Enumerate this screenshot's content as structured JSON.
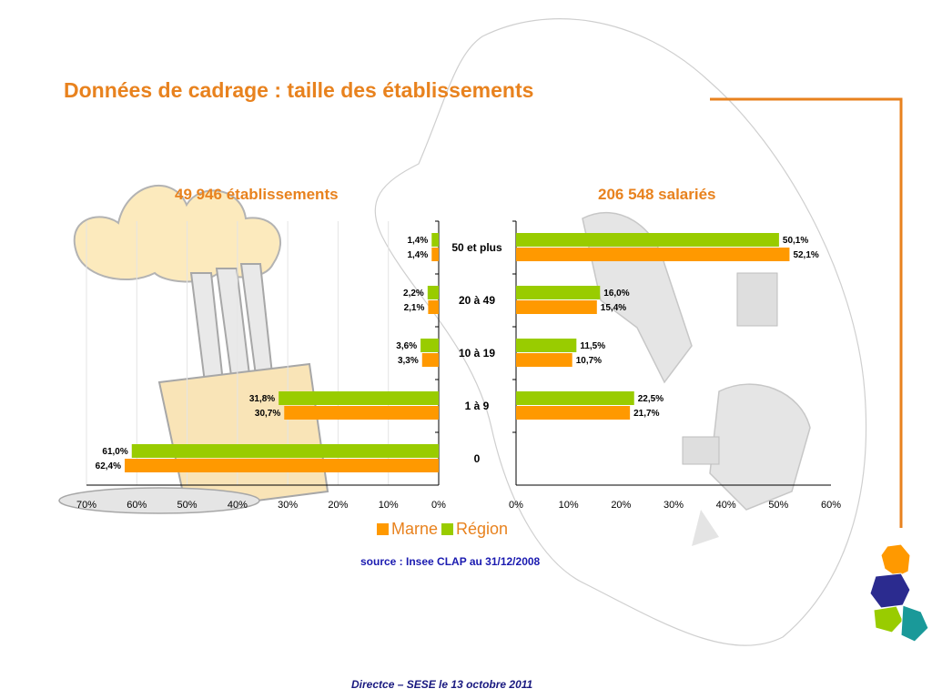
{
  "slide": {
    "title": "Données de cadrage : taille  des établissements",
    "source": "source : Insee CLAP au 31/12/2008",
    "footer": "Directce – SESE le 13 octobre 2011"
  },
  "colors": {
    "marne": "#ff9900",
    "region": "#99cc00",
    "title": "#e8821e",
    "accent_line": "#e8821e",
    "source_text": "#1a1ab0"
  },
  "legend": {
    "marne": "Marne",
    "region": "Région"
  },
  "chart_data": [
    {
      "type": "bar",
      "orientation": "horizontal-mirrored",
      "title": "49 946 établissements",
      "categories": [
        "50 et plus",
        "20 à 49",
        "10 à 19",
        "1 à 9",
        "0"
      ],
      "series": [
        {
          "name": "Région",
          "values": [
            1.4,
            2.2,
            3.6,
            31.8,
            61.0
          ]
        },
        {
          "name": "Marne",
          "values": [
            1.4,
            2.1,
            3.3,
            30.7,
            62.4
          ]
        }
      ],
      "data_labels": {
        "Région": [
          "1,4%",
          "2,2%",
          "3,6%",
          "31,8%",
          "61,0%"
        ],
        "Marne": [
          "1,4%",
          "2,1%",
          "3,3%",
          "30,7%",
          "62,4%"
        ]
      },
      "xlim": [
        0,
        70
      ],
      "xticks": [
        70,
        60,
        50,
        40,
        30,
        20,
        10,
        0
      ],
      "xtick_labels": [
        "70%",
        "60%",
        "50%",
        "40%",
        "30%",
        "20%",
        "10%",
        "0%"
      ],
      "grid": true
    },
    {
      "type": "bar",
      "orientation": "horizontal",
      "title": "206 548 salariés",
      "categories": [
        "50 et plus",
        "20 à 49",
        "10 à 19",
        "1 à 9",
        "0"
      ],
      "series": [
        {
          "name": "Région",
          "values": [
            50.1,
            16.0,
            11.5,
            22.5,
            null
          ]
        },
        {
          "name": "Marne",
          "values": [
            52.1,
            15.4,
            10.7,
            21.7,
            null
          ]
        }
      ],
      "data_labels": {
        "Région": [
          "50,1%",
          "16,0%",
          "11,5%",
          "22,5%",
          ""
        ],
        "Marne": [
          "52,1%",
          "15,4%",
          "10,7%",
          "21,7%",
          ""
        ]
      },
      "xlim": [
        0,
        60
      ],
      "xticks": [
        0,
        10,
        20,
        30,
        40,
        50,
        60
      ],
      "xtick_labels": [
        "0%",
        "10%",
        "20%",
        "30%",
        "40%",
        "50%",
        "60%"
      ],
      "grid": false
    }
  ]
}
